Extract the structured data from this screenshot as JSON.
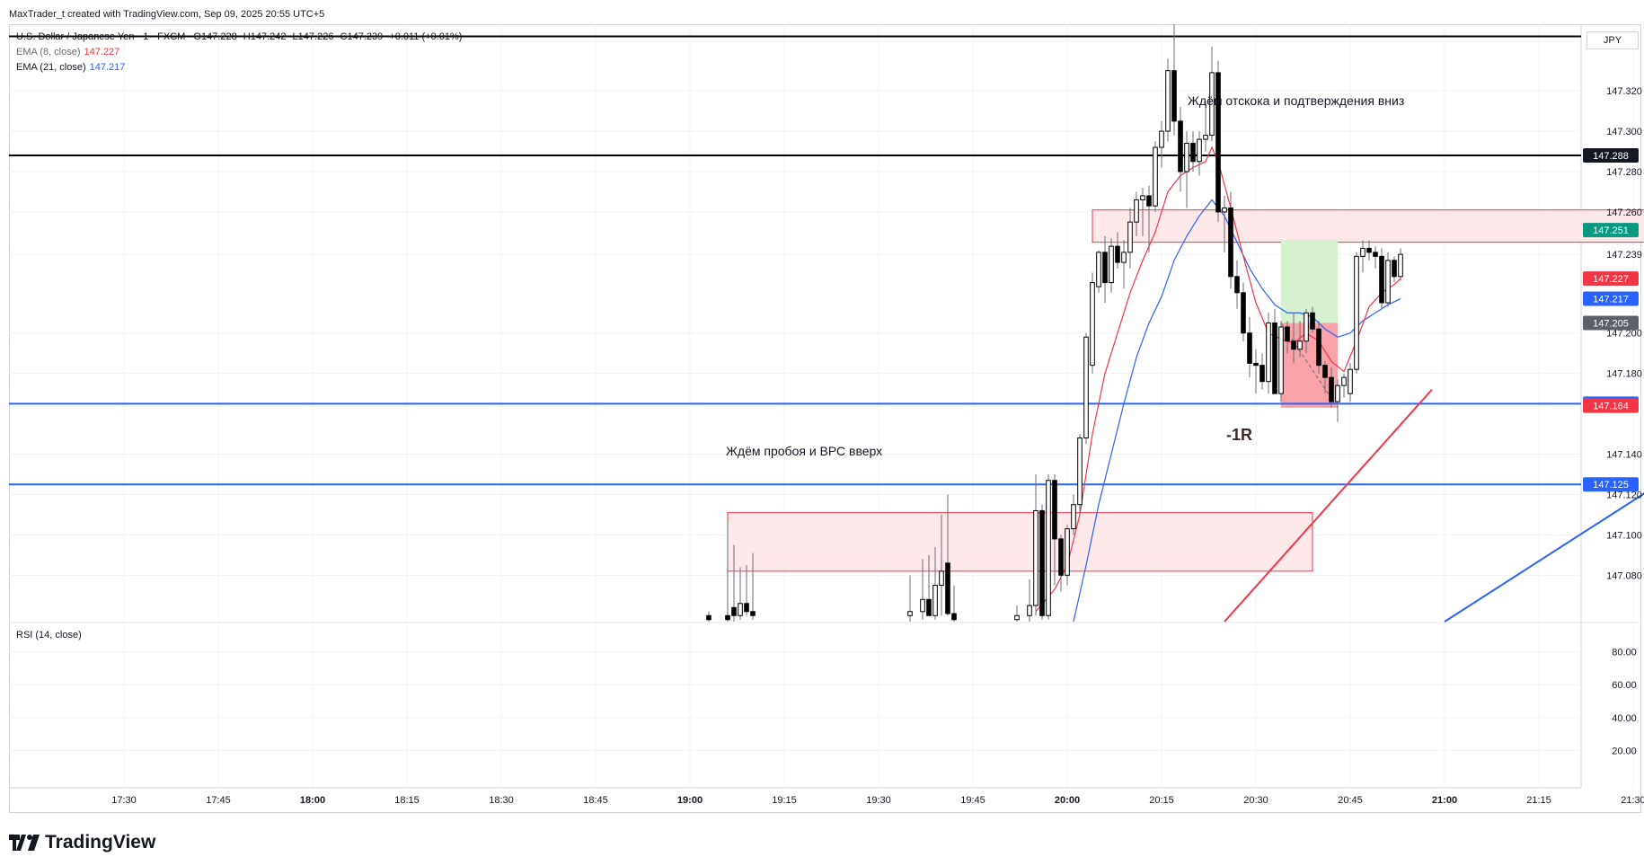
{
  "header": {
    "credit": "MaxTrader_t created with TradingView.com, Sep 09, 2025 20:55 UTC+5",
    "symbol_line": "U.S. Dollar / Japanese Yen · 1 · FXCM",
    "ohlc": {
      "o_label": "O",
      "o": "147.228",
      "h_label": "H",
      "h": "147.242",
      "l_label": "L",
      "l": "147.226",
      "c_label": "C",
      "c": "147.239",
      "change": "+0.011 (+0.01%)"
    },
    "ema8": {
      "label": "EMA (8, close)",
      "value": "147.227",
      "color": "#f23645"
    },
    "ema21": {
      "label": "EMA (21, close)",
      "value": "147.217",
      "color": "#2962ff"
    },
    "currency": "JPY"
  },
  "rsi": {
    "label": "RSI (14, close)",
    "ticks": [
      "80.00",
      "60.00",
      "40.00",
      "20.00"
    ]
  },
  "annotations": {
    "wait_bounce": "Ждём отскока и подтверждения вниз",
    "wait_breakout": "Ждём пробоя и ВРС вверх",
    "result": "-1R"
  },
  "brand": {
    "name": "TradingView"
  },
  "colors": {
    "up": "#ffffff",
    "down": "#000000",
    "ema8": "#f23645",
    "ema21": "#2962ff",
    "hline_blue": "#2962ff",
    "hline_black": "#000000",
    "zone_fill": "#fde8ea",
    "zone_stroke": "#f23645",
    "tp_fill": "#d6f0d0",
    "sl_fill": "#f9a3a8",
    "trend_red": "#f23645",
    "trend_blue": "#2962ff"
  },
  "chart_data": {
    "type": "candlestick",
    "symbol": "USDJPY",
    "timeframe": "1",
    "price_axis_ticks": [
      "147.320",
      "147.300",
      "147.280",
      "147.260",
      "147.239",
      "147.200",
      "147.180",
      "147.140",
      "147.120",
      "147.100",
      "147.080"
    ],
    "time_axis_ticks": [
      "17:30",
      "17:45",
      "18:00",
      "18:15",
      "18:30",
      "18:45",
      "19:00",
      "19:15",
      "19:30",
      "19:45",
      "20:00",
      "20:15",
      "20:30",
      "20:45",
      "21:00",
      "21:15",
      "21:30"
    ],
    "time_axis_bold": [
      "18:00",
      "19:00",
      "20:00",
      "21:00"
    ],
    "price_range": [
      147.057,
      147.353
    ],
    "price_badges": [
      {
        "value": "147.288",
        "color": "#131722",
        "text_color": "#ffffff"
      },
      {
        "value": "147.251",
        "color": "#089981",
        "text_color": "#ffffff"
      },
      {
        "value": "147.227",
        "color": "#f23645",
        "text_color": "#ffffff"
      },
      {
        "value": "147.217",
        "color": "#2962ff",
        "text_color": "#ffffff"
      },
      {
        "value": "147.205",
        "color": "#5d606b",
        "text_color": "#ffffff"
      },
      {
        "value": "147.165",
        "color": "#2962ff",
        "text_color": "#ffffff"
      },
      {
        "value": "147.164",
        "color": "#f23645",
        "text_color": "#ffffff"
      },
      {
        "value": "147.125",
        "color": "#2962ff",
        "text_color": "#ffffff"
      }
    ],
    "horizontal_lines": [
      {
        "price": 147.347,
        "color": "#000000"
      },
      {
        "price": 147.288,
        "color": "#000000"
      },
      {
        "price": 147.165,
        "color": "#2962ff"
      },
      {
        "price": 147.125,
        "color": "#2962ff"
      }
    ],
    "zones": [
      {
        "t1": "19:06",
        "t2": "20:39",
        "p_top": 147.111,
        "p_bot": 147.082
      },
      {
        "t1": "20:04",
        "t2": "21:32",
        "p_top": 147.261,
        "p_bot": 147.245
      }
    ],
    "position": {
      "t1": "20:34",
      "t2": "20:43",
      "entry": 147.205,
      "take_profit": 147.246,
      "stop": 147.163
    },
    "trend_lines": [
      {
        "t1": "20:25",
        "p1": 147.057,
        "t2": "20:58",
        "p2": 147.172,
        "color": "#f23645"
      },
      {
        "t1": "21:00",
        "p1": 147.057,
        "t2": "21:32",
        "p2": 147.121,
        "color": "#2962ff"
      }
    ],
    "candles": [
      {
        "t": "19:03",
        "o": 147.06,
        "h": 147.062,
        "l": 147.055,
        "c": 147.058
      },
      {
        "t": "19:06",
        "o": 147.06,
        "h": 147.107,
        "l": 147.055,
        "c": 147.058
      },
      {
        "t": "19:07",
        "o": 147.064,
        "h": 147.095,
        "l": 147.057,
        "c": 147.06
      },
      {
        "t": "19:08",
        "o": 147.06,
        "h": 147.084,
        "l": 147.058,
        "c": 147.066
      },
      {
        "t": "19:09",
        "o": 147.066,
        "h": 147.085,
        "l": 147.06,
        "c": 147.062
      },
      {
        "t": "19:10",
        "o": 147.062,
        "h": 147.091,
        "l": 147.058,
        "c": 147.06
      },
      {
        "t": "19:35",
        "o": 147.06,
        "h": 147.08,
        "l": 147.055,
        "c": 147.062
      },
      {
        "t": "19:37",
        "o": 147.062,
        "h": 147.088,
        "l": 147.058,
        "c": 147.068
      },
      {
        "t": "19:38",
        "o": 147.068,
        "h": 147.09,
        "l": 147.06,
        "c": 147.06
      },
      {
        "t": "19:39",
        "o": 147.06,
        "h": 147.094,
        "l": 147.058,
        "c": 147.075
      },
      {
        "t": "19:40",
        "o": 147.075,
        "h": 147.11,
        "l": 147.06,
        "c": 147.082
      },
      {
        "t": "19:41",
        "o": 147.086,
        "h": 147.12,
        "l": 147.06,
        "c": 147.061
      },
      {
        "t": "19:42",
        "o": 147.061,
        "h": 147.075,
        "l": 147.055,
        "c": 147.058
      },
      {
        "t": "19:52",
        "o": 147.058,
        "h": 147.065,
        "l": 147.055,
        "c": 147.06
      },
      {
        "t": "19:54",
        "o": 147.06,
        "h": 147.078,
        "l": 147.055,
        "c": 147.065
      },
      {
        "t": "19:55",
        "o": 147.065,
        "h": 147.13,
        "l": 147.06,
        "c": 147.112
      },
      {
        "t": "19:56",
        "o": 147.112,
        "h": 147.115,
        "l": 147.058,
        "c": 147.06
      },
      {
        "t": "19:57",
        "o": 147.06,
        "h": 147.13,
        "l": 147.058,
        "c": 147.127
      },
      {
        "t": "19:58",
        "o": 147.127,
        "h": 147.13,
        "l": 147.075,
        "c": 147.098
      },
      {
        "t": "19:59",
        "o": 147.098,
        "h": 147.1,
        "l": 147.072,
        "c": 147.08
      },
      {
        "t": "20:00",
        "o": 147.08,
        "h": 147.105,
        "l": 147.075,
        "c": 147.103
      },
      {
        "t": "20:01",
        "o": 147.103,
        "h": 147.12,
        "l": 147.1,
        "c": 147.115
      },
      {
        "t": "20:02",
        "o": 147.115,
        "h": 147.15,
        "l": 147.11,
        "c": 147.148
      },
      {
        "t": "20:03",
        "o": 147.148,
        "h": 147.2,
        "l": 147.145,
        "c": 147.198
      },
      {
        "t": "20:04",
        "o": 147.184,
        "h": 147.23,
        "l": 147.18,
        "c": 147.225
      },
      {
        "t": "20:05",
        "o": 147.223,
        "h": 147.241,
        "l": 147.22,
        "c": 147.24
      },
      {
        "t": "20:06",
        "o": 147.24,
        "h": 147.248,
        "l": 147.215,
        "c": 147.225
      },
      {
        "t": "20:07",
        "o": 147.225,
        "h": 147.247,
        "l": 147.22,
        "c": 147.243
      },
      {
        "t": "20:08",
        "o": 147.243,
        "h": 147.25,
        "l": 147.232,
        "c": 147.235
      },
      {
        "t": "20:09",
        "o": 147.235,
        "h": 147.246,
        "l": 147.222,
        "c": 147.24
      },
      {
        "t": "20:10",
        "o": 147.24,
        "h": 147.262,
        "l": 147.232,
        "c": 147.255
      },
      {
        "t": "20:11",
        "o": 147.255,
        "h": 147.27,
        "l": 147.248,
        "c": 147.266
      },
      {
        "t": "20:12",
        "o": 147.266,
        "h": 147.272,
        "l": 147.248,
        "c": 147.268
      },
      {
        "t": "20:13",
        "o": 147.268,
        "h": 147.273,
        "l": 147.24,
        "c": 147.263
      },
      {
        "t": "20:14",
        "o": 147.263,
        "h": 147.295,
        "l": 147.26,
        "c": 147.292
      },
      {
        "t": "20:15",
        "o": 147.292,
        "h": 147.305,
        "l": 147.282,
        "c": 147.3
      },
      {
        "t": "20:16",
        "o": 147.3,
        "h": 147.336,
        "l": 147.295,
        "c": 147.33
      },
      {
        "t": "20:17",
        "o": 147.33,
        "h": 147.355,
        "l": 147.298,
        "c": 147.305
      },
      {
        "t": "20:18",
        "o": 147.305,
        "h": 147.312,
        "l": 147.27,
        "c": 147.28
      },
      {
        "t": "20:19",
        "o": 147.28,
        "h": 147.3,
        "l": 147.262,
        "c": 147.294
      },
      {
        "t": "20:20",
        "o": 147.294,
        "h": 147.3,
        "l": 147.28,
        "c": 147.285
      },
      {
        "t": "20:21",
        "o": 147.285,
        "h": 147.3,
        "l": 147.278,
        "c": 147.296
      },
      {
        "t": "20:22",
        "o": 147.296,
        "h": 147.315,
        "l": 147.29,
        "c": 147.298
      },
      {
        "t": "20:23",
        "o": 147.298,
        "h": 147.342,
        "l": 147.295,
        "c": 147.329
      },
      {
        "t": "20:24",
        "o": 147.329,
        "h": 147.335,
        "l": 147.255,
        "c": 147.26
      },
      {
        "t": "20:25",
        "o": 147.26,
        "h": 147.268,
        "l": 147.24,
        "c": 147.262
      },
      {
        "t": "20:26",
        "o": 147.262,
        "h": 147.27,
        "l": 147.222,
        "c": 147.228
      },
      {
        "t": "20:27",
        "o": 147.228,
        "h": 147.236,
        "l": 147.212,
        "c": 147.22
      },
      {
        "t": "20:28",
        "o": 147.22,
        "h": 147.225,
        "l": 147.196,
        "c": 147.2
      },
      {
        "t": "20:29",
        "o": 147.2,
        "h": 147.208,
        "l": 147.178,
        "c": 147.185
      },
      {
        "t": "20:30",
        "o": 147.185,
        "h": 147.192,
        "l": 147.17,
        "c": 147.184
      },
      {
        "t": "20:31",
        "o": 147.184,
        "h": 147.19,
        "l": 147.172,
        "c": 147.176
      },
      {
        "t": "20:32",
        "o": 147.176,
        "h": 147.21,
        "l": 147.17,
        "c": 147.205
      },
      {
        "t": "20:33",
        "o": 147.205,
        "h": 147.212,
        "l": 147.17,
        "c": 147.17
      },
      {
        "t": "20:34",
        "o": 147.17,
        "h": 147.206,
        "l": 147.166,
        "c": 147.203
      },
      {
        "t": "20:35",
        "o": 147.203,
        "h": 147.206,
        "l": 147.19,
        "c": 147.196
      },
      {
        "t": "20:36",
        "o": 147.196,
        "h": 147.21,
        "l": 147.185,
        "c": 147.192
      },
      {
        "t": "20:37",
        "o": 147.192,
        "h": 147.206,
        "l": 147.188,
        "c": 147.196
      },
      {
        "t": "20:38",
        "o": 147.196,
        "h": 147.212,
        "l": 147.19,
        "c": 147.21
      },
      {
        "t": "20:39",
        "o": 147.21,
        "h": 147.213,
        "l": 147.2,
        "c": 147.202
      },
      {
        "t": "20:40",
        "o": 147.202,
        "h": 147.206,
        "l": 147.18,
        "c": 147.184
      },
      {
        "t": "20:41",
        "o": 147.184,
        "h": 147.186,
        "l": 147.17,
        "c": 147.178
      },
      {
        "t": "20:42",
        "o": 147.178,
        "h": 147.183,
        "l": 147.163,
        "c": 147.166
      },
      {
        "t": "20:43",
        "o": 147.166,
        "h": 147.177,
        "l": 147.156,
        "c": 147.174
      },
      {
        "t": "20:44",
        "o": 147.174,
        "h": 147.18,
        "l": 147.168,
        "c": 147.178
      },
      {
        "t": "20:45",
        "o": 147.17,
        "h": 147.185,
        "l": 147.166,
        "c": 147.182
      },
      {
        "t": "20:46",
        "o": 147.182,
        "h": 147.24,
        "l": 147.18,
        "c": 147.238
      },
      {
        "t": "20:47",
        "o": 147.238,
        "h": 147.246,
        "l": 147.23,
        "c": 147.242
      },
      {
        "t": "20:48",
        "o": 147.242,
        "h": 147.246,
        "l": 147.236,
        "c": 147.24
      },
      {
        "t": "20:49",
        "o": 147.24,
        "h": 147.243,
        "l": 147.232,
        "c": 147.238
      },
      {
        "t": "20:50",
        "o": 147.238,
        "h": 147.242,
        "l": 147.212,
        "c": 147.215
      },
      {
        "t": "20:51",
        "o": 147.215,
        "h": 147.24,
        "l": 147.213,
        "c": 147.236
      },
      {
        "t": "20:52",
        "o": 147.236,
        "h": 147.238,
        "l": 147.225,
        "c": 147.228
      },
      {
        "t": "20:53",
        "o": 147.228,
        "h": 147.242,
        "l": 147.226,
        "c": 147.239
      }
    ],
    "ema8_points": [
      [
        "19:55",
        147.062
      ],
      [
        "19:58",
        147.073
      ],
      [
        "20:00",
        147.085
      ],
      [
        "20:02",
        147.11
      ],
      [
        "20:04",
        147.15
      ],
      [
        "20:06",
        147.18
      ],
      [
        "20:08",
        147.2
      ],
      [
        "20:10",
        147.22
      ],
      [
        "20:12",
        147.236
      ],
      [
        "20:14",
        147.25
      ],
      [
        "20:16",
        147.27
      ],
      [
        "20:18",
        147.278
      ],
      [
        "20:20",
        147.282
      ],
      [
        "20:22",
        147.285
      ],
      [
        "20:23",
        147.292
      ],
      [
        "20:24",
        147.285
      ],
      [
        "20:26",
        147.262
      ],
      [
        "20:28",
        147.238
      ],
      [
        "20:30",
        147.215
      ],
      [
        "20:32",
        147.2
      ],
      [
        "20:34",
        147.197
      ],
      [
        "20:36",
        147.195
      ],
      [
        "20:38",
        147.2
      ],
      [
        "20:40",
        147.196
      ],
      [
        "20:42",
        147.186
      ],
      [
        "20:44",
        147.181
      ],
      [
        "20:46",
        147.196
      ],
      [
        "20:48",
        147.213
      ],
      [
        "20:50",
        147.22
      ],
      [
        "20:52",
        147.224
      ],
      [
        "20:53",
        147.227
      ]
    ],
    "ema21_points": [
      [
        "20:01",
        147.057
      ],
      [
        "20:03",
        147.085
      ],
      [
        "20:05",
        147.115
      ],
      [
        "20:07",
        147.14
      ],
      [
        "20:09",
        147.165
      ],
      [
        "20:11",
        147.188
      ],
      [
        "20:13",
        147.205
      ],
      [
        "20:15",
        147.218
      ],
      [
        "20:17",
        147.236
      ],
      [
        "20:19",
        147.248
      ],
      [
        "20:21",
        147.258
      ],
      [
        "20:23",
        147.266
      ],
      [
        "20:25",
        147.258
      ],
      [
        "20:27",
        147.245
      ],
      [
        "20:29",
        147.232
      ],
      [
        "20:31",
        147.222
      ],
      [
        "20:33",
        147.214
      ],
      [
        "20:35",
        147.21
      ],
      [
        "20:37",
        147.21
      ],
      [
        "20:39",
        147.208
      ],
      [
        "20:41",
        147.202
      ],
      [
        "20:43",
        147.198
      ],
      [
        "20:45",
        147.2
      ],
      [
        "20:47",
        147.206
      ],
      [
        "20:49",
        147.21
      ],
      [
        "20:51",
        147.214
      ],
      [
        "20:53",
        147.217
      ]
    ]
  }
}
